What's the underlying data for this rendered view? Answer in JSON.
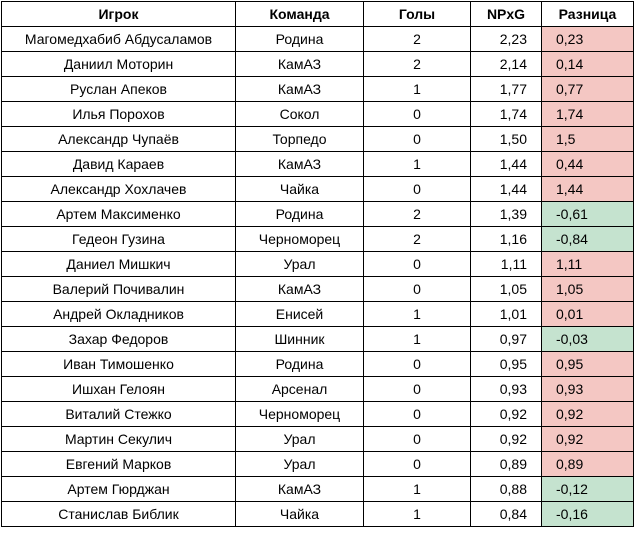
{
  "colors": {
    "positive": "#f4c7c3",
    "negative": "#c5e3cf"
  },
  "headers": {
    "player": "Игрок",
    "team": "Команда",
    "goals": "Голы",
    "npxg": "NPxG",
    "diff": "Разница"
  },
  "rows": [
    {
      "player": "Магомедхабиб Абдусаламов",
      "team": "Родина",
      "goals": "2",
      "npxg": "2,23",
      "diff": "0,23",
      "sign": "pos"
    },
    {
      "player": "Даниил Моторин",
      "team": "КамАЗ",
      "goals": "2",
      "npxg": "2,14",
      "diff": "0,14",
      "sign": "pos"
    },
    {
      "player": "Руслан Апеков",
      "team": "КамАЗ",
      "goals": "1",
      "npxg": "1,77",
      "diff": "0,77",
      "sign": "pos"
    },
    {
      "player": "Илья Порохов",
      "team": "Сокол",
      "goals": "0",
      "npxg": "1,74",
      "diff": "1,74",
      "sign": "pos"
    },
    {
      "player": "Александр Чупаёв",
      "team": "Торпедо",
      "goals": "0",
      "npxg": "1,50",
      "diff": "1,5",
      "sign": "pos"
    },
    {
      "player": "Давид Караев",
      "team": "КамАЗ",
      "goals": "1",
      "npxg": "1,44",
      "diff": "0,44",
      "sign": "pos"
    },
    {
      "player": "Александр Хохлачев",
      "team": "Чайка",
      "goals": "0",
      "npxg": "1,44",
      "diff": "1,44",
      "sign": "pos"
    },
    {
      "player": "Артем Максименко",
      "team": "Родина",
      "goals": "2",
      "npxg": "1,39",
      "diff": "-0,61",
      "sign": "neg"
    },
    {
      "player": "Гедеон Гузина",
      "team": "Черноморец",
      "goals": "2",
      "npxg": "1,16",
      "diff": "-0,84",
      "sign": "neg"
    },
    {
      "player": "Даниел Мишкич",
      "team": "Урал",
      "goals": "0",
      "npxg": "1,11",
      "diff": "1,11",
      "sign": "pos"
    },
    {
      "player": "Валерий Почивалин",
      "team": "КамАЗ",
      "goals": "0",
      "npxg": "1,05",
      "diff": "1,05",
      "sign": "pos"
    },
    {
      "player": "Андрей Окладников",
      "team": "Енисей",
      "goals": "1",
      "npxg": "1,01",
      "diff": "0,01",
      "sign": "pos"
    },
    {
      "player": "Захар Федоров",
      "team": "Шинник",
      "goals": "1",
      "npxg": "0,97",
      "diff": "-0,03",
      "sign": "neg"
    },
    {
      "player": "Иван Тимошенко",
      "team": "Родина",
      "goals": "0",
      "npxg": "0,95",
      "diff": "0,95",
      "sign": "pos"
    },
    {
      "player": "Ишхан Гелоян",
      "team": "Арсенал",
      "goals": "0",
      "npxg": "0,93",
      "diff": "0,93",
      "sign": "pos"
    },
    {
      "player": "Виталий Стежко",
      "team": "Черноморец",
      "goals": "0",
      "npxg": "0,92",
      "diff": "0,92",
      "sign": "pos"
    },
    {
      "player": "Мартин Секулич",
      "team": "Урал",
      "goals": "0",
      "npxg": "0,92",
      "diff": "0,92",
      "sign": "pos"
    },
    {
      "player": "Евгений Марков",
      "team": "Урал",
      "goals": "0",
      "npxg": "0,89",
      "diff": "0,89",
      "sign": "pos"
    },
    {
      "player": "Артем Гюрджан",
      "team": "КамАЗ",
      "goals": "1",
      "npxg": "0,88",
      "diff": "-0,12",
      "sign": "neg"
    },
    {
      "player": "Станислав Библик",
      "team": "Чайка",
      "goals": "1",
      "npxg": "0,84",
      "diff": "-0,16",
      "sign": "neg"
    }
  ]
}
